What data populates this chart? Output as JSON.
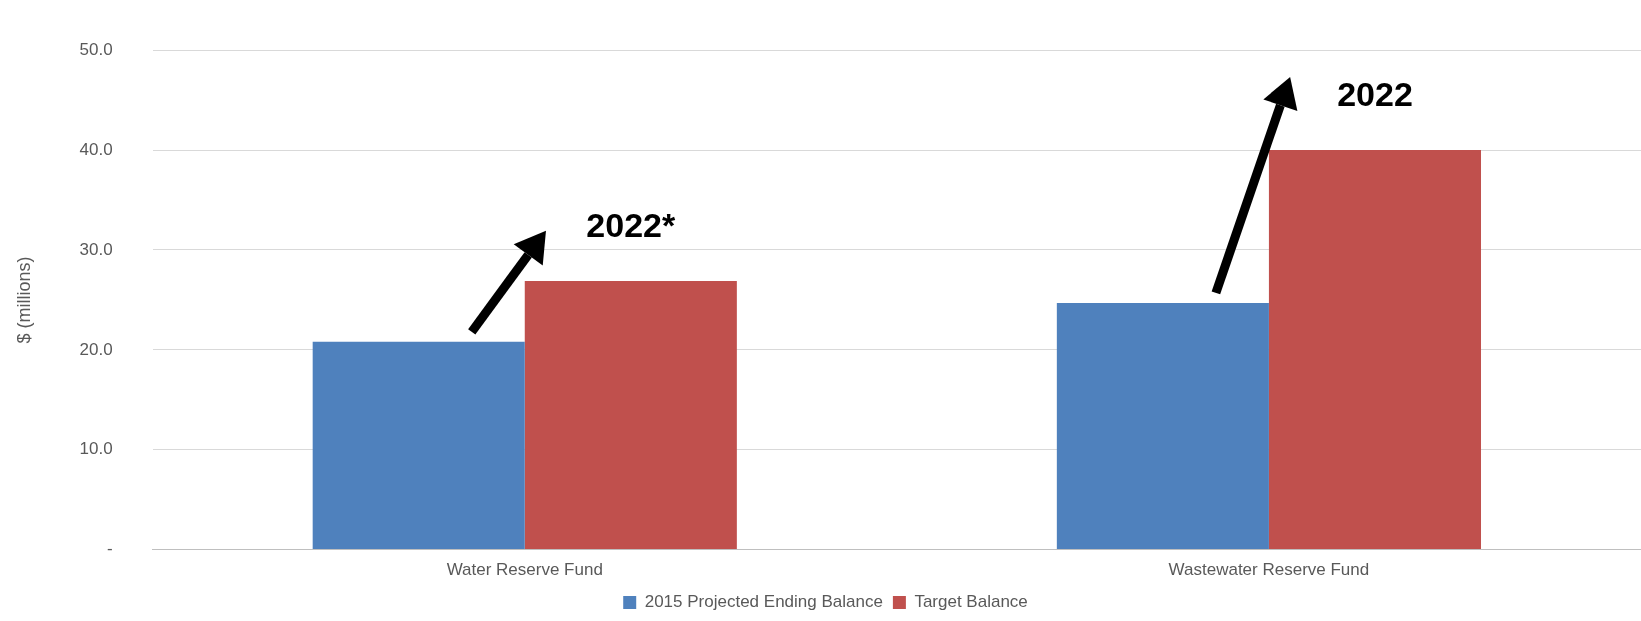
{
  "chart_data": {
    "type": "bar",
    "ylabel": "$ (millions)",
    "categories": [
      "Water Reserve Fund",
      "Wastewater Reserve Fund"
    ],
    "series": [
      {
        "name": "2015 Projected Ending Balance",
        "color": "#4f81bd",
        "values": [
          20.8,
          24.7
        ]
      },
      {
        "name": "Target Balance",
        "color": "#c0504d",
        "values": [
          26.9,
          40.0
        ]
      }
    ],
    "ylim": [
      0,
      50
    ],
    "yticks": [
      {
        "value": 0,
        "label": "-"
      },
      {
        "value": 10,
        "label": "10.0"
      },
      {
        "value": 20,
        "label": "20.0"
      },
      {
        "value": 30,
        "label": "30.0"
      },
      {
        "value": 40,
        "label": "40.0"
      },
      {
        "value": 50,
        "label": "50.0"
      }
    ],
    "grid": "y",
    "legend": "bottom",
    "annotations": [
      {
        "text": "2022*",
        "x": "Water Reserve Fund",
        "y": 26.9
      },
      {
        "text": "2022",
        "x": "Wastewater Reserve Fund",
        "y": 40.0
      }
    ]
  }
}
